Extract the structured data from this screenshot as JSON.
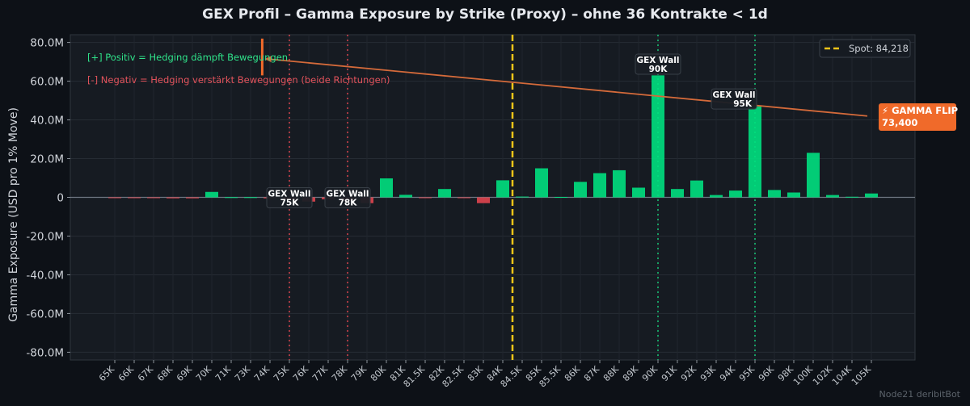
{
  "title": "GEX Profil – Gamma Exposure by Strike (Proxy) – ohne 36 Kontrakte < 1d",
  "watermark": "Node21 deribitBot",
  "chart_data": {
    "type": "bar",
    "ylabel": "Gamma Exposure (USD pro 1% Move)",
    "ylim": [
      -84,
      84
    ],
    "yticks": [
      {
        "v": 80,
        "label": "80.0M"
      },
      {
        "v": 60,
        "label": "60.0M"
      },
      {
        "v": 40,
        "label": "40.0M"
      },
      {
        "v": 20,
        "label": "20.0M"
      },
      {
        "v": 0,
        "label": "0"
      },
      {
        "v": -20,
        "label": "-20.0M"
      },
      {
        "v": -40,
        "label": "-40.0M"
      },
      {
        "v": -60,
        "label": "-60.0M"
      },
      {
        "v": -80,
        "label": "-80.0M"
      }
    ],
    "unit": "M USD",
    "categories": [
      "65K",
      "66K",
      "67K",
      "68K",
      "69K",
      "70K",
      "71K",
      "73K",
      "74K",
      "75K",
      "76K",
      "77K",
      "78K",
      "79K",
      "80K",
      "81K",
      "81.5K",
      "82K",
      "82.5K",
      "83K",
      "84K",
      "84.5K",
      "85K",
      "85.5K",
      "86K",
      "87K",
      "88K",
      "89K",
      "90K",
      "91K",
      "92K",
      "93K",
      "94K",
      "95K",
      "96K",
      "98K",
      "100K",
      "102K",
      "104K",
      "105K"
    ],
    "values": [
      -0.3,
      -0.3,
      -0.2,
      -0.5,
      -0.5,
      2.8,
      0.1,
      0.1,
      -0.5,
      -1.2,
      -2.2,
      -1.0,
      -2.0,
      -3.0,
      9.8,
      1.3,
      -0.3,
      4.3,
      -0.2,
      -3.0,
      8.8,
      0.4,
      15.0,
      0.2,
      8.0,
      12.5,
      14.0,
      5.0,
      63.0,
      4.3,
      8.7,
      1.2,
      3.5,
      47.0,
      3.8,
      2.5,
      23.0,
      1.2,
      0.3,
      2.0
    ],
    "spot": {
      "label": "Spot: 84,218",
      "value": 84218,
      "position_index": 20.5,
      "color": "#f5c518"
    },
    "gamma_flip": {
      "label": "⚡ GAMMA FLIP",
      "value": "73,400",
      "position_index": 7.6,
      "color": "#f06a2a"
    },
    "walls": [
      {
        "title": "GEX Wall",
        "strike": "75K",
        "index": 9,
        "type": "negative",
        "label_y": 0
      },
      {
        "title": "GEX Wall",
        "strike": "78K",
        "index": 12,
        "type": "negative",
        "label_y": 0
      },
      {
        "title": "GEX Wall",
        "strike": "90K",
        "index": 28,
        "type": "positive",
        "label_y": 69
      },
      {
        "title": "GEX Wall",
        "strike": "95K",
        "index": 33,
        "type": "positive",
        "label_y": 51
      }
    ],
    "annotations": {
      "positive": "[+] Positiv = Hedging dämpft Bewegungen",
      "negative": "[-] Negativ = Hedging verstärkt Bewegungen (beide Richtungen)"
    },
    "legend": {
      "position": "top-right"
    },
    "grid": true,
    "colors": {
      "positive": "#00e080",
      "negative": "#e0454f",
      "spot": "#f5c518",
      "flip": "#f06a2a",
      "pos_wall": "#18d07a",
      "neg_wall": "#e0454f"
    }
  }
}
